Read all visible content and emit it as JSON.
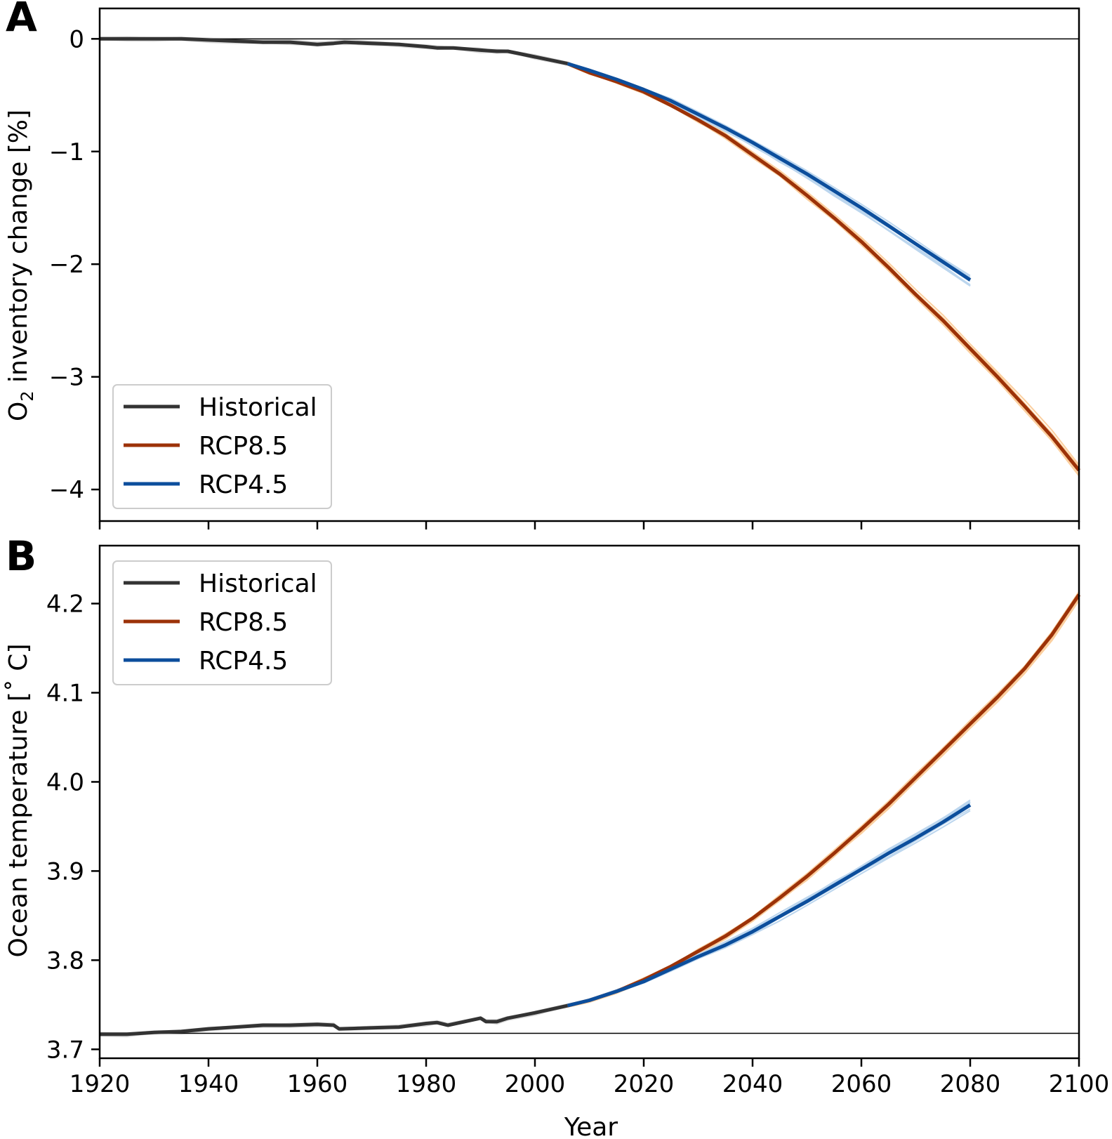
{
  "colors": {
    "historical": "#333333",
    "historical_member": "#d9d9d9",
    "rcp85": "#9c3208",
    "rcp85_member": "#fbcf9f",
    "rcp45": "#0c4e9c",
    "rcp45_member": "#bcd6ee",
    "reference_line": "#000000"
  },
  "chart_data": [
    {
      "type": "line",
      "panel_label": "A",
      "title": "",
      "xlabel": "",
      "ylabel": "O",
      "ylabel_subscript": "2",
      "ylabel_suffix": " inventory change [%]",
      "xlim": [
        1920,
        2100
      ],
      "ylim": [
        -4.28,
        0.27
      ],
      "xticks": [
        1920,
        1940,
        1960,
        1980,
        2000,
        2020,
        2040,
        2060,
        2080,
        2100
      ],
      "yticks": [
        0,
        -1,
        -2,
        -3,
        -4
      ],
      "ytick_labels": [
        "0",
        "−1",
        "−2",
        "−3",
        "−4"
      ],
      "reference_line": 0,
      "legend": {
        "placement": "lower-left",
        "entries": [
          "Historical",
          "RCP8.5",
          "RCP4.5"
        ]
      },
      "series": [
        {
          "name": "Historical",
          "color_key": "historical",
          "x": [
            1920,
            1925,
            1930,
            1935,
            1940,
            1945,
            1950,
            1955,
            1960,
            1963,
            1965,
            1970,
            1975,
            1980,
            1982,
            1985,
            1990,
            1993,
            1995,
            2000,
            2006
          ],
          "y": [
            0.0,
            0.0,
            0.0,
            0.0,
            -0.01,
            -0.02,
            -0.03,
            -0.03,
            -0.05,
            -0.04,
            -0.03,
            -0.04,
            -0.05,
            -0.07,
            -0.08,
            -0.08,
            -0.1,
            -0.11,
            -0.11,
            -0.16,
            -0.22
          ]
        },
        {
          "name": "RCP8.5",
          "color_key": "rcp85",
          "x": [
            2006,
            2010,
            2015,
            2020,
            2025,
            2030,
            2035,
            2040,
            2045,
            2050,
            2055,
            2060,
            2065,
            2070,
            2075,
            2080,
            2085,
            2090,
            2095,
            2100
          ],
          "y": [
            -0.22,
            -0.3,
            -0.38,
            -0.47,
            -0.59,
            -0.72,
            -0.86,
            -1.03,
            -1.2,
            -1.39,
            -1.59,
            -1.8,
            -2.03,
            -2.27,
            -2.5,
            -2.75,
            -3.0,
            -3.26,
            -3.53,
            -3.83
          ]
        },
        {
          "name": "RCP4.5",
          "color_key": "rcp45",
          "x": [
            2006,
            2010,
            2015,
            2020,
            2025,
            2030,
            2035,
            2040,
            2045,
            2050,
            2055,
            2060,
            2065,
            2070,
            2075,
            2080
          ],
          "y": [
            -0.22,
            -0.28,
            -0.36,
            -0.45,
            -0.55,
            -0.67,
            -0.79,
            -0.92,
            -1.06,
            -1.2,
            -1.35,
            -1.5,
            -1.66,
            -1.82,
            -1.98,
            -2.14
          ]
        }
      ]
    },
    {
      "type": "line",
      "panel_label": "B",
      "title": "",
      "xlabel": "Year",
      "ylabel": "Ocean temperature [˚ C]",
      "xlim": [
        1920,
        2100
      ],
      "ylim": [
        3.69,
        4.265
      ],
      "xticks": [
        1920,
        1940,
        1960,
        1980,
        2000,
        2020,
        2040,
        2060,
        2080,
        2100
      ],
      "yticks": [
        3.7,
        3.8,
        3.9,
        4.0,
        4.1,
        4.2
      ],
      "ytick_labels": [
        "3.7",
        "3.8",
        "3.9",
        "4.0",
        "4.1",
        "4.2"
      ],
      "reference_line": 3.718,
      "legend": {
        "placement": "upper-left",
        "entries": [
          "Historical",
          "RCP8.5",
          "RCP4.5"
        ]
      },
      "series": [
        {
          "name": "Historical",
          "color_key": "historical",
          "x": [
            1920,
            1925,
            1930,
            1935,
            1940,
            1945,
            1950,
            1955,
            1960,
            1963,
            1964,
            1970,
            1975,
            1980,
            1982,
            1984,
            1990,
            1991,
            1993,
            1995,
            2000,
            2006
          ],
          "y": [
            3.717,
            3.717,
            3.719,
            3.72,
            3.723,
            3.725,
            3.727,
            3.727,
            3.728,
            3.727,
            3.723,
            3.724,
            3.725,
            3.729,
            3.73,
            3.727,
            3.735,
            3.731,
            3.731,
            3.735,
            3.741,
            3.749
          ]
        },
        {
          "name": "RCP8.5",
          "color_key": "rcp85",
          "x": [
            2006,
            2010,
            2015,
            2020,
            2025,
            2030,
            2035,
            2040,
            2045,
            2050,
            2055,
            2060,
            2065,
            2070,
            2075,
            2080,
            2085,
            2090,
            2095,
            2100
          ],
          "y": [
            3.749,
            3.755,
            3.765,
            3.778,
            3.793,
            3.81,
            3.827,
            3.847,
            3.87,
            3.894,
            3.92,
            3.947,
            3.975,
            4.005,
            4.035,
            4.065,
            4.095,
            4.127,
            4.165,
            4.21
          ]
        },
        {
          "name": "RCP4.5",
          "color_key": "rcp45",
          "x": [
            2006,
            2010,
            2015,
            2020,
            2025,
            2030,
            2035,
            2040,
            2045,
            2050,
            2055,
            2060,
            2065,
            2070,
            2075,
            2080
          ],
          "y": [
            3.749,
            3.755,
            3.765,
            3.776,
            3.79,
            3.804,
            3.817,
            3.832,
            3.849,
            3.866,
            3.884,
            3.902,
            3.92,
            3.937,
            3.955,
            3.974
          ]
        }
      ]
    }
  ]
}
